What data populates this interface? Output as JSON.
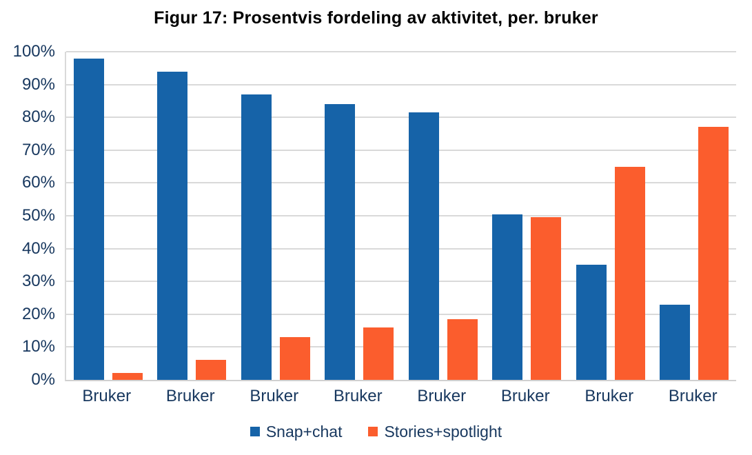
{
  "chart_data": {
    "type": "bar",
    "title": "Figur 17: Prosentvis fordeling av aktivitet, per. bruker",
    "categories": [
      "Bruker",
      "Bruker",
      "Bruker",
      "Bruker",
      "Bruker",
      "Bruker",
      "Bruker",
      "Bruker"
    ],
    "series": [
      {
        "name": "Snap+chat",
        "color": "#1663A8",
        "values": [
          98,
          94,
          87,
          84,
          81.5,
          50.5,
          35,
          23
        ]
      },
      {
        "name": "Stories+spotlight",
        "color": "#FB5D2D",
        "values": [
          2,
          6,
          13,
          16,
          18.5,
          49.5,
          65,
          77
        ]
      }
    ],
    "xlabel": "",
    "ylabel": "",
    "ylim": [
      0,
      100
    ],
    "ytick_step": 10,
    "ytick_labels": [
      "0%",
      "10%",
      "20%",
      "30%",
      "40%",
      "50%",
      "60%",
      "70%",
      "80%",
      "90%",
      "100%"
    ],
    "grid": "horizontal",
    "legend_position": "bottom",
    "colors": {
      "axis_text": "#17375E",
      "gridline": "#D9D9D9",
      "title": "#000000",
      "background": "#FFFFFF"
    }
  }
}
